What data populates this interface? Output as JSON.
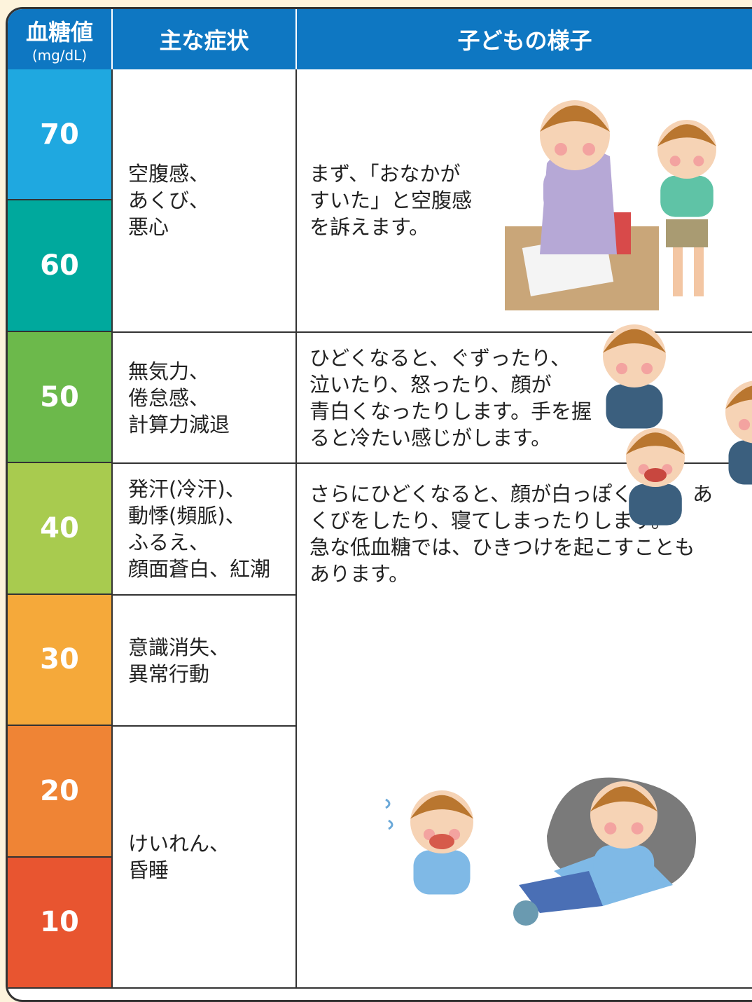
{
  "header": {
    "glucose": "血糖値",
    "unit": "(mg/dL)",
    "symptoms": "主な症状",
    "appearance": "子どもの様子"
  },
  "levels": [
    {
      "value": 70,
      "color": "#1fa8e0"
    },
    {
      "value": 60,
      "color": "#00a99d"
    },
    {
      "value": 50,
      "color": "#6cb94b"
    },
    {
      "value": 40,
      "color": "#a8cb4f"
    },
    {
      "value": 30,
      "color": "#f5a93a"
    },
    {
      "value": 20,
      "color": "#ef8435"
    },
    {
      "value": 10,
      "color": "#e85530"
    }
  ],
  "symptoms": [
    {
      "lines": [
        "空腹感、",
        "あくび、",
        "悪心"
      ]
    },
    {
      "lines": [
        "無気力、",
        "倦怠感、",
        "計算力減退"
      ]
    },
    {
      "lines": [
        "発汗(冷汗)、",
        "動悸(頻脈)、",
        "ふるえ、",
        "顔面蒼白、紅潮"
      ]
    },
    {
      "lines": [
        "意識消失、",
        "異常行動"
      ]
    },
    {
      "lines": [
        "けいれん、",
        "昏睡"
      ]
    }
  ],
  "appearance": [
    {
      "lines": [
        "まず、「おなかが",
        "すいた」と空腹感",
        "を訴えます。"
      ]
    },
    {
      "lines": [
        "ひどくなると、ぐずったり、",
        "泣いたり、怒ったり、顔が",
        "青白くなったりします。手を握",
        "ると冷たい感じがします。"
      ]
    },
    {
      "lines": [
        "さらにひどくなると、顔が白っぽくなり、あ",
        "くびをしたり、寝てしまったりします。",
        "急な低血糖では、ひきつけを起こすことも",
        "あります。"
      ]
    }
  ]
}
